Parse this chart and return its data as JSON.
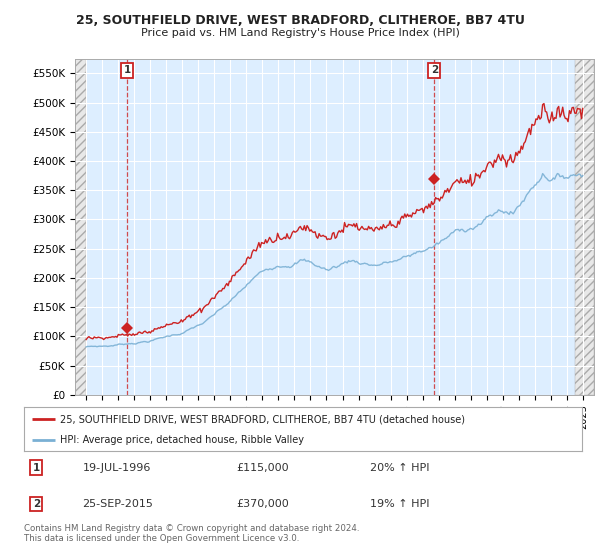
{
  "title": "25, SOUTHFIELD DRIVE, WEST BRADFORD, CLITHEROE, BB7 4TU",
  "subtitle": "Price paid vs. HM Land Registry's House Price Index (HPI)",
  "yticks": [
    0,
    50000,
    100000,
    150000,
    200000,
    250000,
    300000,
    350000,
    400000,
    450000,
    500000,
    550000
  ],
  "ytick_labels": [
    "£0",
    "£50K",
    "£100K",
    "£150K",
    "£200K",
    "£250K",
    "£300K",
    "£350K",
    "£400K",
    "£450K",
    "£500K",
    "£550K"
  ],
  "xlim_start": 1993.3,
  "xlim_end": 2025.7,
  "ylim": [
    0,
    575000
  ],
  "red_color": "#cc2222",
  "blue_color": "#7ab0d4",
  "marker1_date": 1996.55,
  "marker1_value": 115000,
  "marker2_date": 2015.73,
  "marker2_value": 370000,
  "plot_bg": "#ddeeff",
  "hatch_bg": "#e8e8e8",
  "grid_color": "#ffffff",
  "legend_label1": "25, SOUTHFIELD DRIVE, WEST BRADFORD, CLITHEROE, BB7 4TU (detached house)",
  "legend_label2": "HPI: Average price, detached house, Ribble Valley",
  "note1_date": "19-JUL-1996",
  "note1_price": "£115,000",
  "note1_hpi": "20% ↑ HPI",
  "note2_date": "25-SEP-2015",
  "note2_price": "£370,000",
  "note2_hpi": "19% ↑ HPI",
  "footer": "Contains HM Land Registry data © Crown copyright and database right 2024.\nThis data is licensed under the Open Government Licence v3.0.",
  "bg_color": "#ffffff"
}
